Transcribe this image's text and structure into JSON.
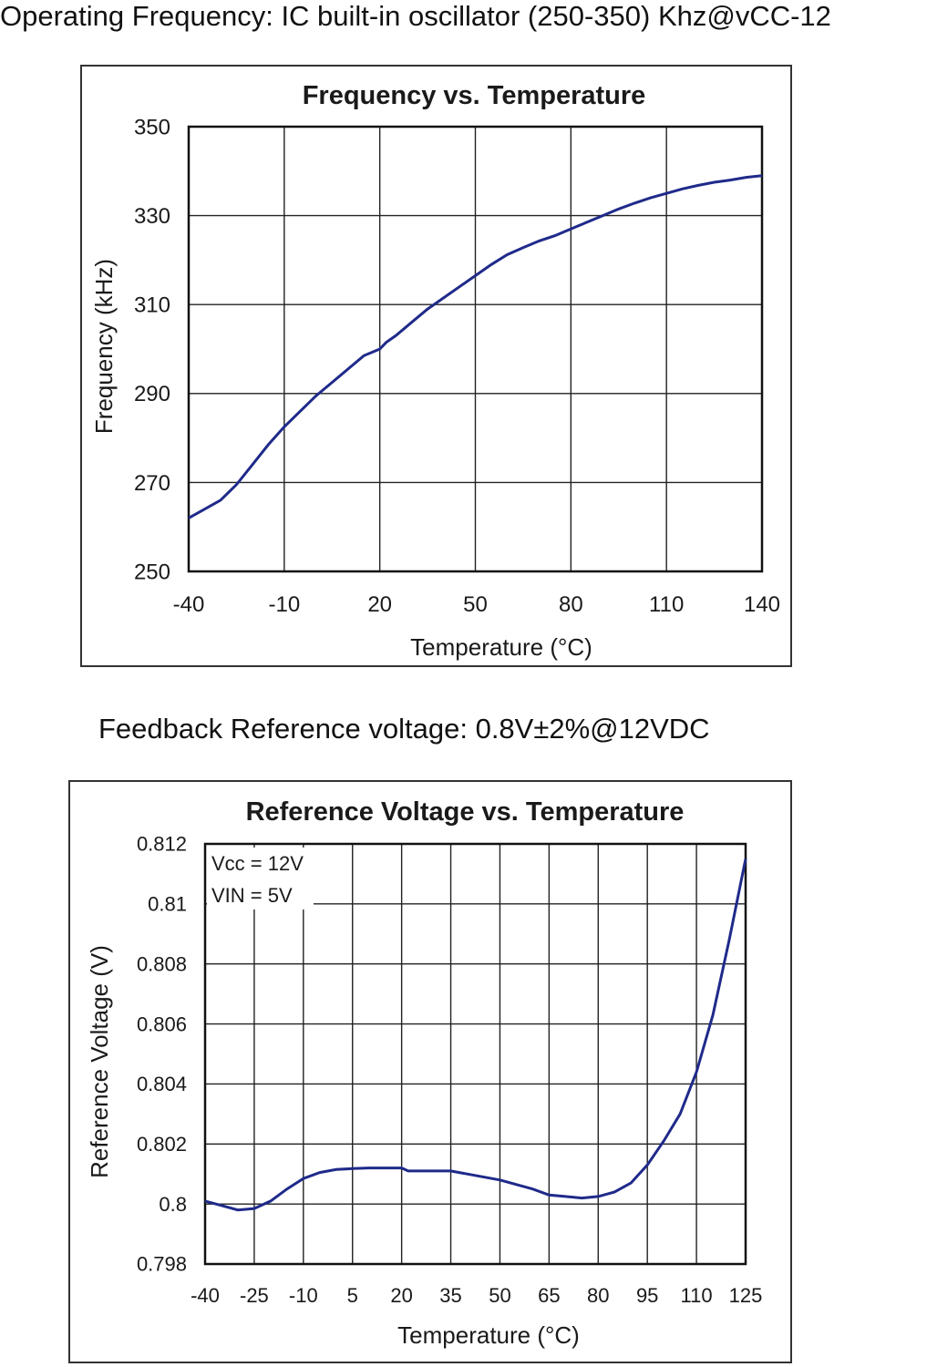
{
  "captions": {
    "operating_frequency": "Operating Frequency: IC built-in oscillator (250-350) Khz@vCC-12",
    "feedback_reference": "Feedback Reference voltage: 0.8V±2%@12VDC"
  },
  "colors": {
    "line": "#1f2a8a",
    "grid": "#222222",
    "frame": "#333333"
  },
  "chart_data": [
    {
      "type": "line",
      "title": "Frequency vs. Temperature",
      "xlabel": "Temperature (°C)",
      "ylabel": "Frequency (kHz)",
      "xlim": [
        -40,
        140
      ],
      "ylim": [
        250,
        350
      ],
      "x_ticks": [
        -40,
        -10,
        20,
        50,
        80,
        110,
        140
      ],
      "y_ticks": [
        250,
        270,
        290,
        310,
        330,
        350
      ],
      "x_tick_labels": [
        "-40",
        "-10",
        "20",
        "50",
        "80",
        "110",
        "140"
      ],
      "y_tick_labels": [
        "250",
        "270",
        "290",
        "310",
        "330",
        "350"
      ],
      "grid": true,
      "series": [
        {
          "x": [
            -40,
            -35,
            -30,
            -25,
            -20,
            -15,
            -10,
            -5,
            0,
            5,
            10,
            15,
            20,
            22,
            25,
            30,
            35,
            40,
            45,
            50,
            55,
            60,
            65,
            70,
            75,
            80,
            85,
            90,
            95,
            100,
            105,
            110,
            115,
            120,
            125,
            130,
            135,
            140
          ],
          "y": [
            262,
            264,
            266,
            269.5,
            274,
            278.5,
            282.5,
            286,
            289.5,
            292.5,
            295.5,
            298.5,
            300,
            301.5,
            303,
            306,
            309,
            311.5,
            314,
            316.5,
            319,
            321.2,
            322.8,
            324.3,
            325.5,
            327,
            328.5,
            330,
            331.5,
            332.8,
            334,
            335,
            336,
            336.8,
            337.5,
            338,
            338.6,
            339
          ]
        }
      ]
    },
    {
      "type": "line",
      "title": "Reference Voltage vs. Temperature",
      "xlabel": "Temperature (°C)",
      "ylabel": "Reference Voltage (V)",
      "xlim": [
        -40,
        125
      ],
      "ylim": [
        0.798,
        0.812
      ],
      "x_ticks": [
        -40,
        -25,
        -10,
        5,
        20,
        35,
        50,
        65,
        80,
        95,
        110,
        125
      ],
      "y_ticks": [
        0.798,
        0.8,
        0.802,
        0.804,
        0.806,
        0.808,
        0.81,
        0.812
      ],
      "x_tick_labels": [
        "-40",
        "-25",
        "-10",
        "5",
        "20",
        "35",
        "50",
        "65",
        "80",
        "95",
        "110",
        "125"
      ],
      "y_tick_labels": [
        "0.798",
        "0.8",
        "0.802",
        "0.804",
        "0.806",
        "0.808",
        "0.81",
        "0.812"
      ],
      "grid": true,
      "annotations": [
        "Vcc = 12V",
        "VIN = 5V"
      ],
      "series": [
        {
          "x": [
            -40,
            -35,
            -30,
            -25,
            -20,
            -15,
            -10,
            -5,
            0,
            5,
            10,
            15,
            20,
            22,
            25,
            30,
            35,
            40,
            50,
            60,
            65,
            70,
            75,
            80,
            85,
            90,
            95,
            100,
            105,
            110,
            115,
            120,
            125
          ],
          "y": [
            0.8001,
            0.79995,
            0.7998,
            0.79985,
            0.8001,
            0.8005,
            0.80085,
            0.80105,
            0.80115,
            0.80118,
            0.8012,
            0.8012,
            0.8012,
            0.8011,
            0.8011,
            0.8011,
            0.8011,
            0.801,
            0.8008,
            0.8005,
            0.8003,
            0.80025,
            0.8002,
            0.80025,
            0.8004,
            0.8007,
            0.8013,
            0.8021,
            0.803,
            0.8044,
            0.8063,
            0.8088,
            0.8115
          ]
        }
      ]
    }
  ]
}
